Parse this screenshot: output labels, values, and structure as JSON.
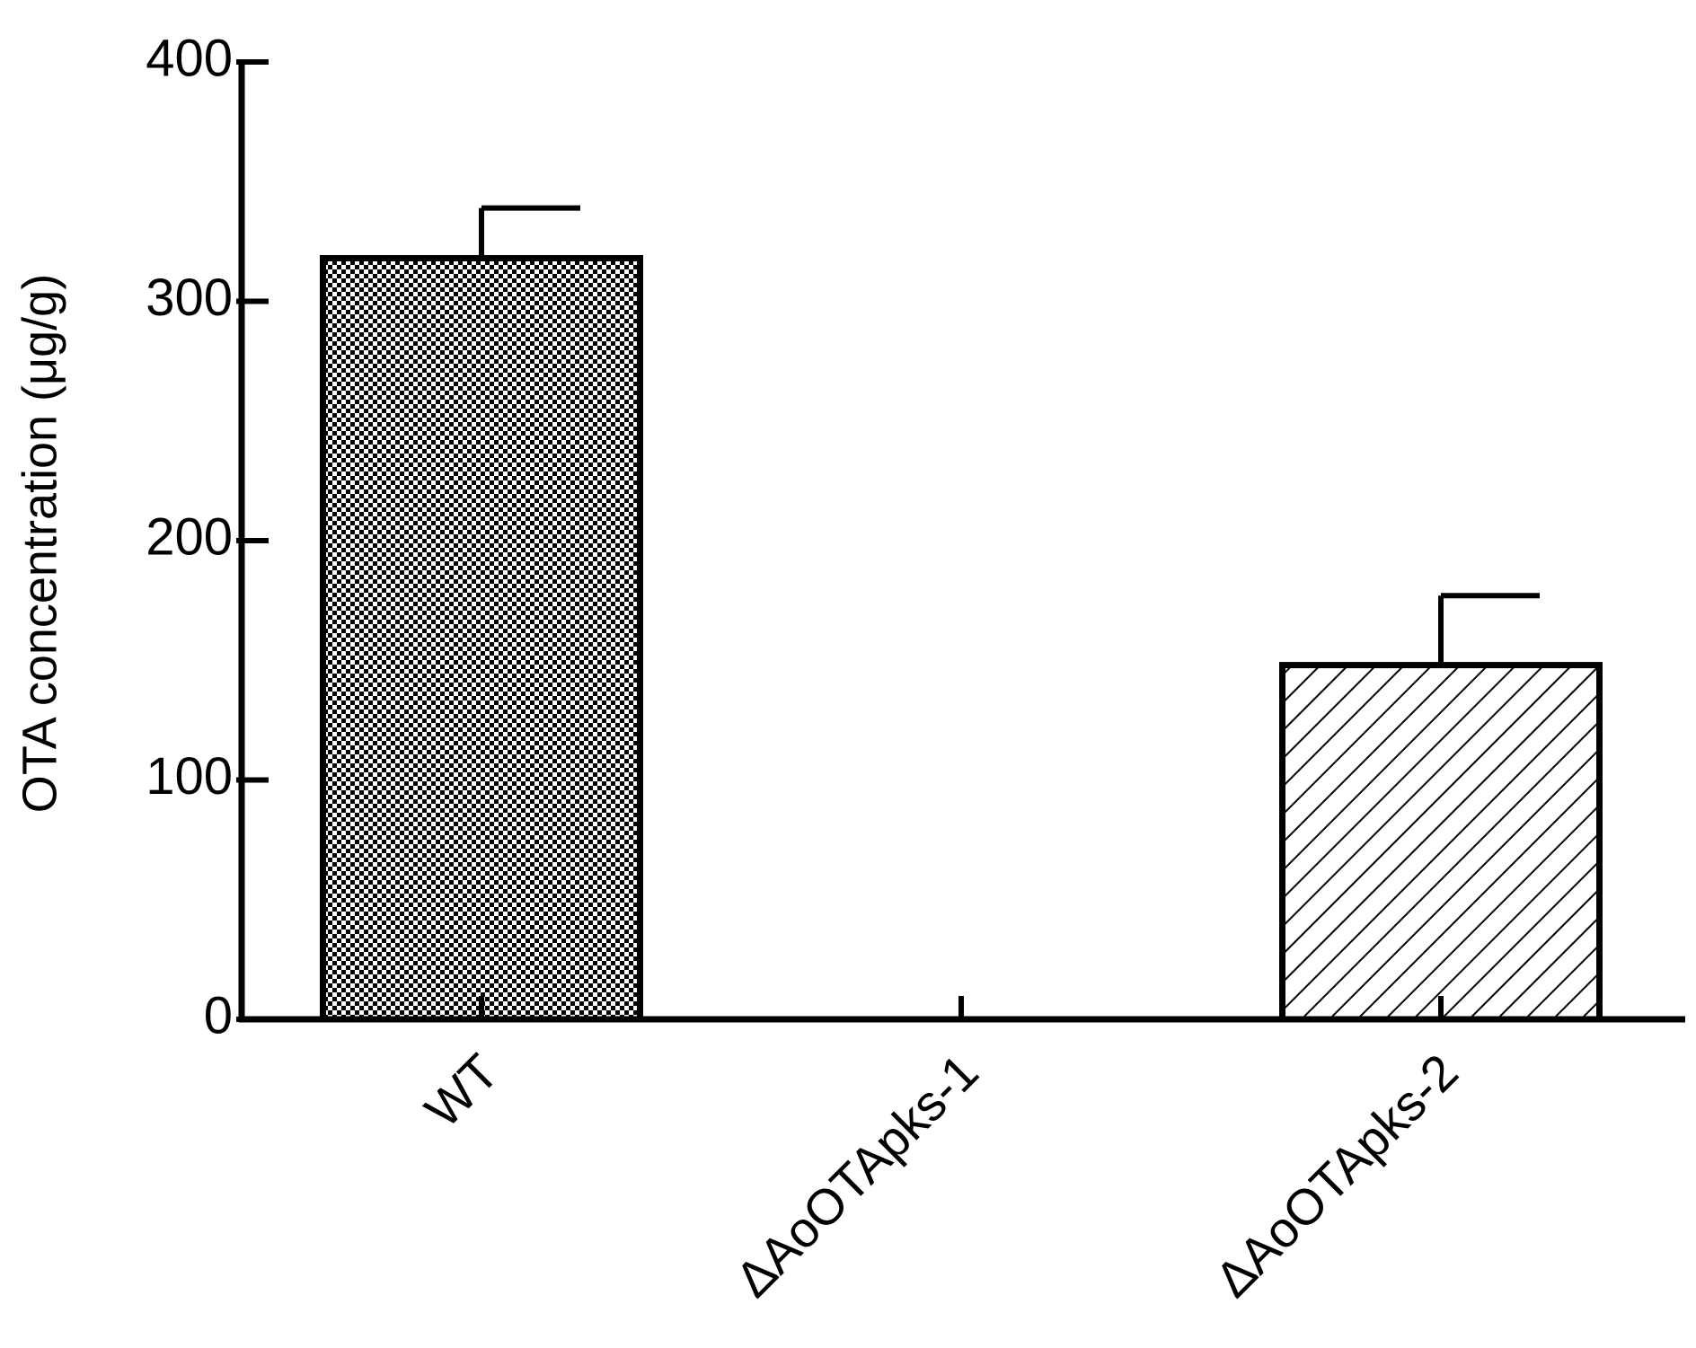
{
  "chart_data": {
    "type": "bar",
    "y_label": "OTA concentration (μg/g)",
    "categories": [
      "WT",
      "ΔAoOTApks-1",
      "ΔAoOTApks-2"
    ],
    "values": [
      318,
      0,
      148
    ],
    "errors": [
      21,
      0,
      29
    ],
    "patterns": [
      "checker",
      "checker",
      "hatch"
    ],
    "color": "#000000",
    "ylim": [
      0,
      400
    ],
    "yticks": [
      0,
      100,
      200,
      300,
      400
    ]
  }
}
